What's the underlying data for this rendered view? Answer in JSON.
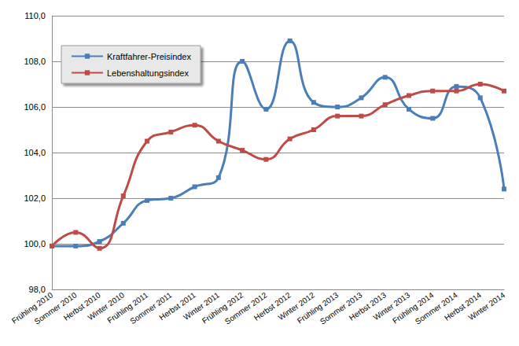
{
  "chart_data": {
    "type": "line",
    "categories": [
      "Frühling 2010",
      "Sommer 2010",
      "Herbst 2010",
      "Winter 2010",
      "Frühling 2011",
      "Sommer 2011",
      "Herbst 2011",
      "Winter 2011",
      "Frühling 2012",
      "Sommer 2012",
      "Herbst 2012",
      "Winter 2012",
      "Frühling 2013",
      "Sommer 2013",
      "Herbst 2013",
      "Winter 2013",
      "Frühling 2014",
      "Sommer 2014",
      "Herbst 2014",
      "Winter 2014"
    ],
    "series": [
      {
        "name": "Kraftfahrer-Preisindex",
        "color": "#4a7ebb",
        "marker": "square",
        "line_style": "smooth",
        "values": [
          99.9,
          99.9,
          100.1,
          100.9,
          101.9,
          102.0,
          102.5,
          102.9,
          108.0,
          105.9,
          108.9,
          106.2,
          106.0,
          106.4,
          107.3,
          105.9,
          105.5,
          106.9,
          106.4,
          102.4
        ]
      },
      {
        "name": "Lebenshaltungsindex",
        "color": "#be4b48",
        "marker": "square",
        "line_style": "smooth",
        "values": [
          99.9,
          100.5,
          99.8,
          102.1,
          104.5,
          104.9,
          105.2,
          104.5,
          104.1,
          103.7,
          104.6,
          105.0,
          105.6,
          105.6,
          106.1,
          106.5,
          106.7,
          106.7,
          107.0,
          106.7
        ]
      }
    ],
    "ylim": [
      98,
      110
    ],
    "yticks": [
      {
        "value": 98,
        "label": "98,0"
      },
      {
        "value": 100,
        "label": "100,0"
      },
      {
        "value": 102,
        "label": "102,0"
      },
      {
        "value": 104,
        "label": "104,0"
      },
      {
        "value": 106,
        "label": "106,0"
      },
      {
        "value": 108,
        "label": "108,0"
      },
      {
        "value": 110,
        "label": "110,0"
      }
    ],
    "grid": true,
    "legend": "top-left"
  }
}
